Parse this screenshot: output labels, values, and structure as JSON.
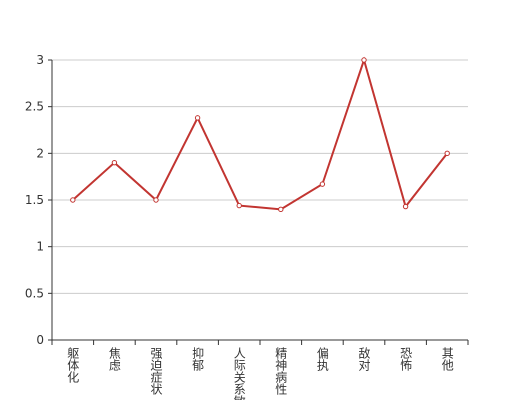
{
  "chart_data": {
    "type": "line",
    "categories": [
      "躯体化",
      "焦虑",
      "强迫症状",
      "抑郁",
      "人际关系敏感",
      "精神病性",
      "偏执",
      "敌对",
      "恐怖",
      "其他"
    ],
    "values": [
      1.5,
      1.9,
      1.5,
      2.38,
      1.44,
      1.4,
      1.67,
      3,
      1.43,
      2
    ],
    "color": "#c23531",
    "ylim": [
      0,
      3
    ],
    "yticks": [
      0,
      0.5,
      1,
      1.5,
      2,
      2.5,
      3
    ],
    "grid": true
  }
}
